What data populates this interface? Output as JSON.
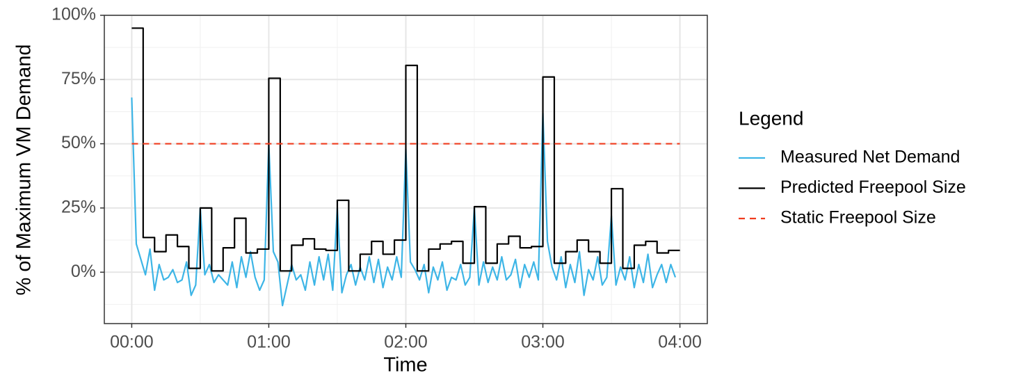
{
  "chart_data": {
    "type": "line",
    "x_label": "Time",
    "y_label": "% of Maximum VM Demand",
    "legend_title": "Legend",
    "legend_position": "right",
    "grid": true,
    "xlim": [
      -12,
      252
    ],
    "xticks": [
      {
        "value": 0,
        "label": "00:00"
      },
      {
        "value": 60,
        "label": "01:00"
      },
      {
        "value": 120,
        "label": "02:00"
      },
      {
        "value": 180,
        "label": "03:00"
      },
      {
        "value": 240,
        "label": "04:00"
      }
    ],
    "ylim": [
      -20,
      100
    ],
    "yticks": [
      {
        "value": 0,
        "label": "0%"
      },
      {
        "value": 25,
        "label": "25%"
      },
      {
        "value": 50,
        "label": "50%"
      },
      {
        "value": 75,
        "label": "75%"
      },
      {
        "value": 100,
        "label": "100%"
      }
    ],
    "series": [
      {
        "name": "Measured Net Demand",
        "color": "#3db5e6",
        "linestyle": "solid",
        "step": false,
        "x": [
          0,
          2,
          4,
          6,
          8,
          10,
          12,
          14,
          16,
          18,
          20,
          22,
          24,
          26,
          28,
          30,
          32,
          34,
          36,
          38,
          40,
          42,
          44,
          46,
          48,
          50,
          52,
          54,
          56,
          58,
          60,
          62,
          64,
          66,
          68,
          70,
          72,
          74,
          76,
          78,
          80,
          82,
          84,
          86,
          88,
          90,
          92,
          94,
          96,
          98,
          100,
          102,
          104,
          106,
          108,
          110,
          112,
          114,
          116,
          118,
          120,
          122,
          124,
          126,
          128,
          130,
          132,
          134,
          136,
          138,
          140,
          142,
          144,
          146,
          148,
          150,
          152,
          154,
          156,
          158,
          160,
          162,
          164,
          166,
          168,
          170,
          172,
          174,
          176,
          178,
          180,
          182,
          184,
          186,
          188,
          190,
          192,
          194,
          196,
          198,
          200,
          202,
          204,
          206,
          208,
          210,
          212,
          214,
          216,
          218,
          220,
          222,
          224,
          226,
          228,
          230,
          232,
          234,
          236,
          238
        ],
        "values": [
          68,
          11,
          5,
          -1,
          9,
          -7,
          3,
          -3,
          -2,
          1,
          -4,
          -3,
          4,
          -9,
          -5,
          25,
          -1,
          3,
          -4,
          -1,
          -3,
          -5,
          4,
          -6,
          6,
          -2,
          8,
          -2,
          -7,
          -3,
          50,
          8,
          4,
          -13,
          -5,
          3,
          -3,
          -1,
          -7,
          4,
          -5,
          6,
          -3,
          7,
          -7,
          25,
          -8,
          -1,
          3,
          -5,
          2,
          -3,
          6,
          -4,
          5,
          -6,
          2,
          -3,
          6,
          -2,
          48,
          4,
          1,
          -3,
          3,
          -8,
          2,
          -3,
          4,
          -7,
          -2,
          -3,
          3,
          -5,
          -2,
          25,
          -5,
          4,
          -4,
          2,
          -3,
          6,
          -3,
          -1,
          5,
          -6,
          3,
          -2,
          4,
          -3,
          62,
          12,
          2,
          -3,
          6,
          -6,
          3,
          -4,
          8,
          -9,
          1,
          -3,
          6,
          -5,
          -2,
          22,
          -5,
          2,
          -3,
          6,
          -6,
          3,
          -4,
          7,
          -6,
          -1,
          3,
          -4,
          3,
          -2
        ]
      },
      {
        "name": "Predicted Freepool Size",
        "color": "#000000",
        "linestyle": "solid",
        "step": true,
        "x": [
          0,
          5,
          10,
          15,
          20,
          25,
          30,
          35,
          40,
          45,
          50,
          55,
          60,
          65,
          70,
          75,
          80,
          85,
          90,
          95,
          100,
          105,
          110,
          115,
          120,
          125,
          130,
          135,
          140,
          145,
          150,
          155,
          160,
          165,
          170,
          175,
          180,
          185,
          190,
          195,
          200,
          205,
          210,
          215,
          220,
          225,
          230,
          235,
          240
        ],
        "values": [
          95,
          13.5,
          8,
          14.5,
          10,
          1.5,
          25,
          0.5,
          9.5,
          21,
          7.5,
          9,
          75.5,
          0.5,
          10.5,
          13,
          9,
          8.5,
          28,
          0.5,
          7,
          12,
          7,
          12.5,
          80.5,
          0.5,
          9,
          11,
          12,
          3.5,
          25.5,
          3.5,
          11,
          14,
          9.5,
          10,
          76,
          3.5,
          8,
          12.5,
          8,
          3.5,
          32.5,
          1.5,
          10.5,
          12,
          7.5,
          8.5,
          8.5
        ]
      },
      {
        "name": "Static Freepool Size",
        "color": "#f03c1e",
        "linestyle": "dashed",
        "step": false,
        "x": [
          0,
          240
        ],
        "values": [
          50,
          50
        ]
      }
    ]
  }
}
